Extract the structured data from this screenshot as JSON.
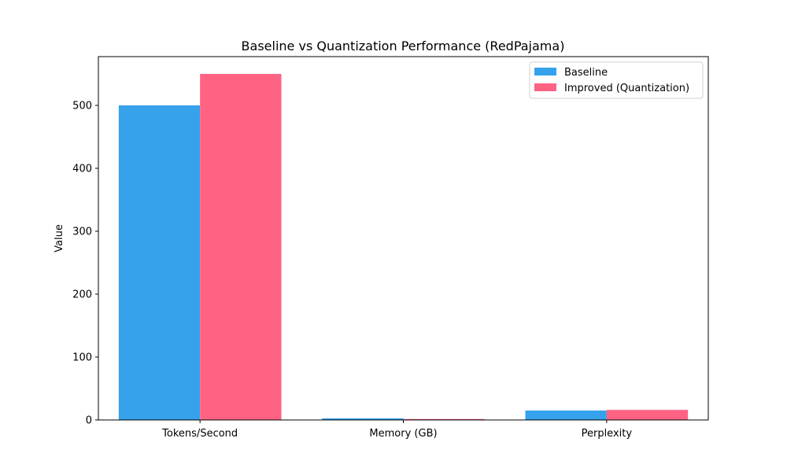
{
  "chart_data": {
    "type": "bar",
    "title": "Baseline vs Quantization Performance (RedPajama)",
    "xlabel": "",
    "ylabel": "Value",
    "categories": [
      "Tokens/Second",
      "Memory (GB)",
      "Perplexity"
    ],
    "series": [
      {
        "name": "Baseline",
        "color": "#36A2EB",
        "values": [
          500,
          2.5,
          15
        ]
      },
      {
        "name": "Improved (Quantization)",
        "color": "#FF6384",
        "values": [
          550,
          1.5,
          16
        ]
      }
    ],
    "ylim": [
      0,
      577.5
    ],
    "yticks": [
      0,
      100,
      200,
      300,
      400,
      500
    ],
    "ytick_labels": [
      "0",
      "100",
      "200",
      "300",
      "400",
      "500"
    ],
    "grid": false,
    "legend_position": "top-right"
  }
}
